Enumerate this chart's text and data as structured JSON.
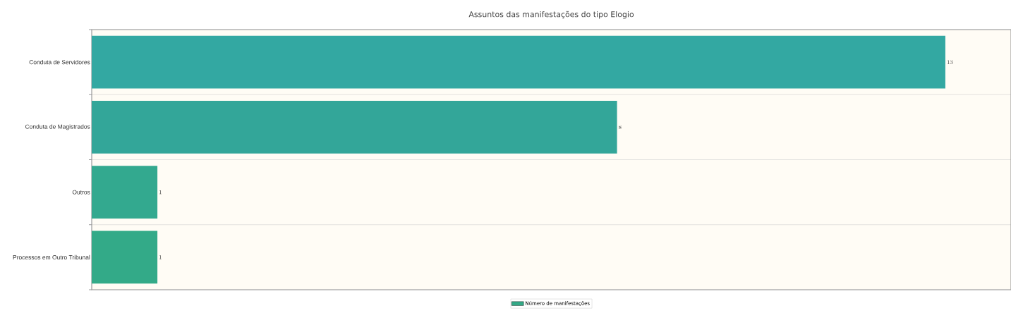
{
  "chart_data": {
    "type": "bar",
    "orientation": "horizontal",
    "title": "Assuntos das manifestações do tipo Elogio",
    "categories": [
      "Conduta de Servidores",
      "Conduta de Magistrados",
      "Outros",
      "Processos em Outro Tribunal"
    ],
    "series": [
      {
        "name": "Número de manifestações",
        "color": "#33a987",
        "colors": [
          "#33a8a2",
          "#33a699",
          "#33a98f",
          "#33aa88"
        ],
        "values": [
          13,
          8,
          1,
          1
        ]
      }
    ],
    "xlim": [
      0,
      14
    ],
    "tick_labels": "y",
    "data_labels": true,
    "grid": "y",
    "legend": "bottom"
  }
}
